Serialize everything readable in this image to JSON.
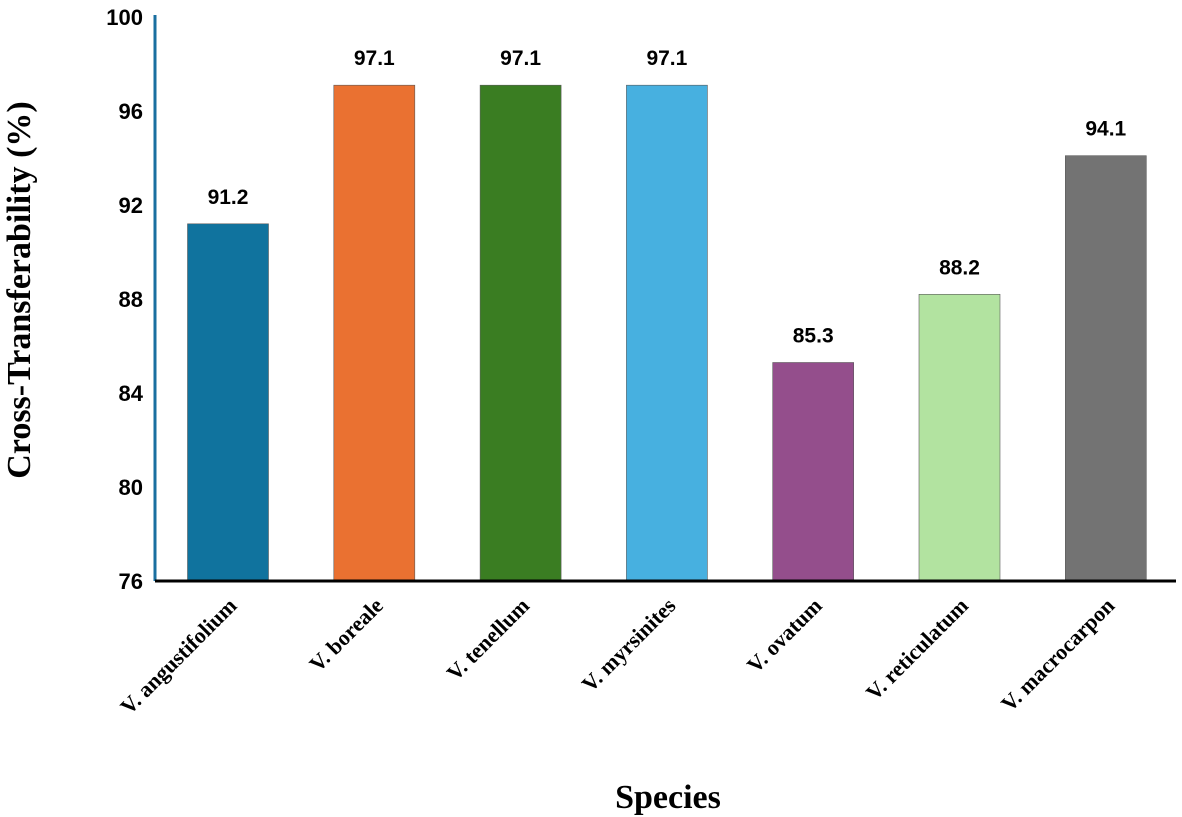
{
  "chart_data": {
    "type": "bar",
    "title": "",
    "xlabel": "Species",
    "ylabel": "Cross-Transferability (%)",
    "ylim": [
      76,
      100
    ],
    "yticks": [
      76,
      80,
      84,
      88,
      92,
      96,
      100
    ],
    "grid": false,
    "categories": [
      "V. angustifolium",
      "V. boreale",
      "V. tenellum",
      "V. myrsinites",
      "V. ovatum",
      "V. reticulatum",
      "V. macrocarpon"
    ],
    "values": [
      91.2,
      97.1,
      97.1,
      97.1,
      85.3,
      88.2,
      94.1
    ],
    "data_labels": [
      "91.2",
      "97.1",
      "97.1",
      "97.1",
      "85.3",
      "88.2",
      "94.1"
    ],
    "colors": [
      "#10739E",
      "#EA7131",
      "#3A7D22",
      "#47B0E0",
      "#944E8C",
      "#B2E3A0",
      "#737373"
    ],
    "axis_color": "#1A6FA0"
  }
}
